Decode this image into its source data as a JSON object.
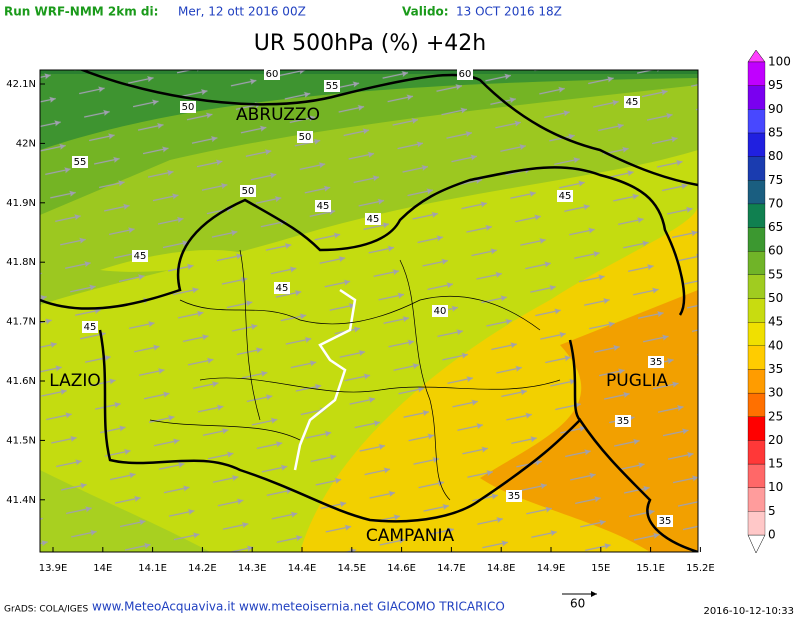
{
  "header": {
    "run_label": "Run WRF-NMM 2km di:",
    "run_date": "Mer, 12 ott 2016 00Z",
    "valid_label": "Valido:",
    "valid_date": "13 OCT 2016 18Z"
  },
  "title": "UR 500hPa (%) +42h",
  "regions": [
    "ABRUZZO",
    "LAZIO",
    "PUGLIA",
    "CAMPANIA"
  ],
  "contour_labels": [
    60,
    55,
    60,
    50,
    45,
    50,
    55,
    50,
    45,
    45,
    45,
    45,
    45,
    40,
    45,
    35,
    35,
    35,
    35
  ],
  "lat_labels": [
    "42.1N",
    "42N",
    "41.9N",
    "41.8N",
    "41.7N",
    "41.6N",
    "41.5N",
    "41.4N"
  ],
  "lon_labels": [
    "13.9E",
    "14E",
    "14.1E",
    "14.2E",
    "14.3E",
    "14.4E",
    "14.5E",
    "14.6E",
    "14.7E",
    "14.8E",
    "14.9E",
    "15E",
    "15.1E",
    "15.2E"
  ],
  "colorbar": {
    "labels": [
      0,
      5,
      10,
      15,
      20,
      25,
      30,
      35,
      40,
      45,
      50,
      55,
      60,
      65,
      70,
      75,
      80,
      85,
      90,
      95,
      100
    ]
  },
  "footer": {
    "credit": "GrADS: COLA/IGES",
    "sites": "www.MeteoAcquaviva.it www.meteoisernia.net GIACOMO TRICARICO",
    "vector_label": "60",
    "timestamp": "2016-10-12-10:33"
  }
}
